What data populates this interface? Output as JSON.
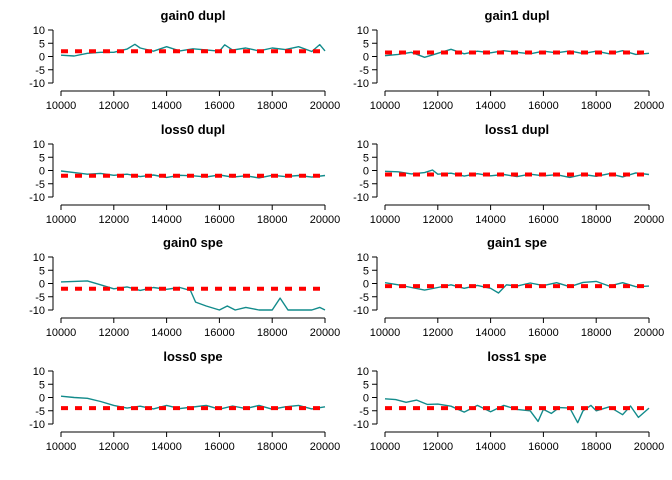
{
  "colors": {
    "trace": "#128b8b",
    "reference": "#ff0000",
    "axis": "#000000"
  },
  "chart_data": [
    {
      "type": "line",
      "title": "gain0 dupl",
      "x_ticks": [
        10000,
        12000,
        14000,
        16000,
        18000,
        20000
      ],
      "y_ticks": [
        10,
        5,
        0,
        -5,
        -10
      ],
      "xlim": [
        10000,
        20000
      ],
      "ylim": [
        -10,
        10
      ],
      "reference": 2.0,
      "x": [
        10000,
        10500,
        11000,
        11500,
        12000,
        12500,
        12800,
        13000,
        13500,
        14000,
        14500,
        15000,
        15500,
        16000,
        16200,
        16500,
        17000,
        17500,
        18000,
        18500,
        19000,
        19500,
        19800,
        20000
      ],
      "values": [
        0.5,
        0.2,
        1.2,
        1.6,
        1.6,
        2.8,
        4.6,
        3.2,
        2.0,
        3.7,
        2.1,
        2.9,
        2.5,
        2.0,
        4.4,
        2.4,
        3.2,
        2.1,
        3.2,
        2.6,
        3.7,
        1.9,
        4.5,
        2.1
      ]
    },
    {
      "type": "line",
      "title": "gain1 dupl",
      "x_ticks": [
        10000,
        12000,
        14000,
        16000,
        18000,
        20000
      ],
      "y_ticks": [
        10,
        5,
        0,
        -5,
        -10
      ],
      "xlim": [
        10000,
        20000
      ],
      "ylim": [
        -10,
        10
      ],
      "reference": 1.5,
      "x": [
        10000,
        10500,
        11000,
        11500,
        12000,
        12500,
        13000,
        13500,
        14000,
        14500,
        15000,
        15500,
        16000,
        16500,
        17000,
        17500,
        18000,
        18500,
        19000,
        19500,
        20000
      ],
      "values": [
        0.3,
        0.8,
        1.6,
        -0.3,
        1.2,
        2.7,
        1.0,
        2.0,
        1.4,
        2.2,
        1.6,
        1.0,
        2.0,
        1.4,
        2.1,
        1.1,
        2.0,
        1.0,
        2.2,
        0.8,
        1.2
      ]
    },
    {
      "type": "line",
      "title": "loss0 dupl",
      "x_ticks": [
        10000,
        12000,
        14000,
        16000,
        18000,
        20000
      ],
      "y_ticks": [
        10,
        5,
        0,
        -5,
        -10
      ],
      "xlim": [
        10000,
        20000
      ],
      "ylim": [
        -10,
        10
      ],
      "reference": -2.0,
      "x": [
        10000,
        10500,
        11000,
        11500,
        12000,
        12500,
        13000,
        13500,
        14000,
        14500,
        15000,
        15500,
        16000,
        16500,
        17000,
        17500,
        18000,
        18500,
        19000,
        19500,
        20000
      ],
      "values": [
        -0.2,
        -0.8,
        -1.4,
        -1.1,
        -1.8,
        -1.4,
        -2.3,
        -1.7,
        -2.6,
        -1.8,
        -2.0,
        -2.4,
        -1.7,
        -2.5,
        -2.0,
        -2.8,
        -1.8,
        -2.3,
        -1.9,
        -2.5,
        -1.9
      ]
    },
    {
      "type": "line",
      "title": "loss1 dupl",
      "x_ticks": [
        10000,
        12000,
        14000,
        16000,
        18000,
        20000
      ],
      "y_ticks": [
        10,
        5,
        0,
        -5,
        -10
      ],
      "xlim": [
        10000,
        20000
      ],
      "ylim": [
        -10,
        10
      ],
      "reference": -1.5,
      "x": [
        10000,
        10500,
        11000,
        11500,
        11800,
        12000,
        12500,
        13000,
        13500,
        14000,
        14500,
        15000,
        15500,
        16000,
        16500,
        17000,
        17500,
        18000,
        18500,
        19000,
        19500,
        20000
      ],
      "values": [
        -0.3,
        -0.5,
        -1.3,
        -0.8,
        0.2,
        -1.4,
        -1.0,
        -2.1,
        -1.2,
        -2.0,
        -1.5,
        -2.3,
        -1.4,
        -2.0,
        -1.6,
        -2.6,
        -1.5,
        -2.2,
        -1.2,
        -2.4,
        -0.9,
        -1.5
      ]
    },
    {
      "type": "line",
      "title": "gain0 spe",
      "x_ticks": [
        10000,
        12000,
        14000,
        16000,
        18000,
        20000
      ],
      "y_ticks": [
        10,
        5,
        0,
        -5,
        -10
      ],
      "xlim": [
        10000,
        20000
      ],
      "ylim": [
        -10,
        10
      ],
      "reference": -2.0,
      "x": [
        10000,
        10500,
        11000,
        11500,
        12000,
        12500,
        13000,
        13500,
        14000,
        14500,
        14900,
        15100,
        15500,
        16000,
        16300,
        16600,
        17000,
        17500,
        18000,
        18300,
        18600,
        19000,
        19500,
        19800,
        20000
      ],
      "values": [
        0.6,
        0.8,
        1.0,
        -0.5,
        -2.0,
        -1.3,
        -2.6,
        -1.5,
        -2.2,
        -1.5,
        -2.6,
        -7.0,
        -8.5,
        -10.0,
        -8.5,
        -10.0,
        -9.0,
        -10.0,
        -10.0,
        -5.5,
        -10.0,
        -10.0,
        -10.0,
        -9.0,
        -10.0
      ]
    },
    {
      "type": "line",
      "title": "gain1 spe",
      "x_ticks": [
        10000,
        12000,
        14000,
        16000,
        18000,
        20000
      ],
      "y_ticks": [
        10,
        5,
        0,
        -5,
        -10
      ],
      "xlim": [
        10000,
        20000
      ],
      "ylim": [
        -10,
        10
      ],
      "reference": -1.0,
      "x": [
        10000,
        10500,
        11000,
        11500,
        12000,
        12500,
        13000,
        13500,
        14000,
        14300,
        14600,
        15000,
        15500,
        16000,
        16500,
        17000,
        17500,
        18000,
        18500,
        19000,
        19500,
        20000
      ],
      "values": [
        0.3,
        -0.5,
        -1.5,
        -2.5,
        -1.5,
        -0.5,
        -1.8,
        -0.7,
        -1.8,
        -3.6,
        -0.5,
        -1.0,
        0.2,
        -0.8,
        0.3,
        -1.2,
        0.4,
        0.8,
        -1.0,
        0.3,
        -1.2,
        -1.0
      ]
    },
    {
      "type": "line",
      "title": "loss0 spe",
      "x_ticks": [
        10000,
        12000,
        14000,
        16000,
        18000,
        20000
      ],
      "y_ticks": [
        10,
        5,
        0,
        -5,
        -10
      ],
      "xlim": [
        10000,
        20000
      ],
      "ylim": [
        -10,
        10
      ],
      "reference": -4.0,
      "x": [
        10000,
        10500,
        11000,
        11500,
        12000,
        12500,
        13000,
        13500,
        14000,
        14500,
        15000,
        15500,
        16000,
        16500,
        17000,
        17500,
        18000,
        18500,
        19000,
        19500,
        20000
      ],
      "values": [
        0.5,
        0.0,
        -0.3,
        -1.5,
        -3.0,
        -4.0,
        -3.3,
        -4.3,
        -3.0,
        -4.2,
        -3.6,
        -3.0,
        -4.4,
        -3.2,
        -4.2,
        -3.0,
        -4.4,
        -3.5,
        -3.0,
        -4.3,
        -3.5
      ]
    },
    {
      "type": "line",
      "title": "loss1 spe",
      "x_ticks": [
        10000,
        12000,
        14000,
        16000,
        18000,
        20000
      ],
      "y_ticks": [
        10,
        5,
        0,
        -5,
        -10
      ],
      "xlim": [
        10000,
        20000
      ],
      "ylim": [
        -10,
        10
      ],
      "reference": -4.0,
      "x": [
        10000,
        10400,
        10800,
        11200,
        11600,
        12000,
        12500,
        13000,
        13500,
        14000,
        14500,
        15000,
        15500,
        15800,
        16000,
        16300,
        16600,
        17000,
        17300,
        17500,
        17800,
        18000,
        18500,
        19000,
        19300,
        19600,
        20000
      ],
      "values": [
        -0.5,
        -0.8,
        -1.8,
        -1.0,
        -2.6,
        -2.5,
        -3.3,
        -5.5,
        -3.0,
        -5.4,
        -3.0,
        -4.5,
        -5.0,
        -9.0,
        -4.5,
        -6.0,
        -3.8,
        -4.0,
        -9.5,
        -5.0,
        -3.0,
        -5.0,
        -3.5,
        -6.5,
        -3.2,
        -7.5,
        -4.0
      ]
    }
  ]
}
